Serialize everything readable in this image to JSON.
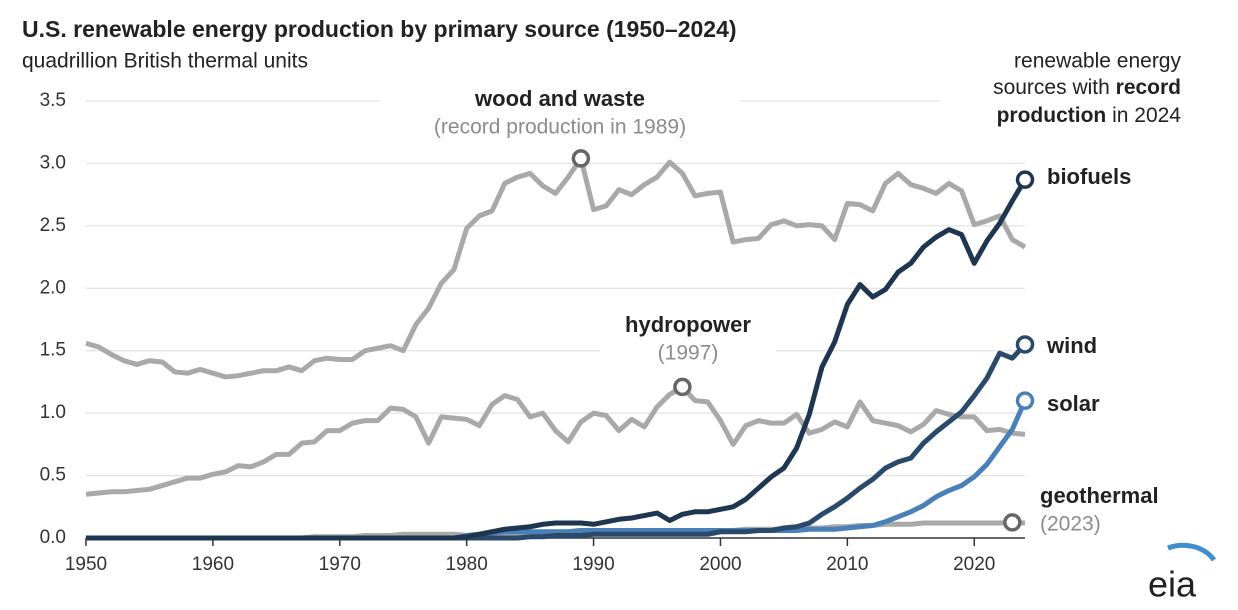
{
  "chart_data": {
    "type": "line",
    "title": "U.S. renewable energy production by primary source (1950–2024)",
    "subtitle": "quadrillion British thermal units",
    "note": {
      "line1": "renewable energy",
      "line2": "sources with",
      "line2_bold": "record",
      "line3_bold": "production",
      "line3": "in 2024"
    },
    "logo": "eia",
    "x": [
      1950,
      1951,
      1952,
      1953,
      1954,
      1955,
      1956,
      1957,
      1958,
      1959,
      1960,
      1961,
      1962,
      1963,
      1964,
      1965,
      1966,
      1967,
      1968,
      1969,
      1970,
      1971,
      1972,
      1973,
      1974,
      1975,
      1976,
      1977,
      1978,
      1979,
      1980,
      1981,
      1982,
      1983,
      1984,
      1985,
      1986,
      1987,
      1988,
      1989,
      1990,
      1991,
      1992,
      1993,
      1994,
      1995,
      1996,
      1997,
      1998,
      1999,
      2000,
      2001,
      2002,
      2003,
      2004,
      2005,
      2006,
      2007,
      2008,
      2009,
      2010,
      2011,
      2012,
      2013,
      2014,
      2015,
      2016,
      2017,
      2018,
      2019,
      2020,
      2021,
      2022,
      2023,
      2024
    ],
    "xlim": [
      1950,
      2024
    ],
    "xticks": [
      1950,
      1960,
      1970,
      1980,
      1990,
      2000,
      2010,
      2020
    ],
    "ylim": [
      0,
      3.5
    ],
    "yticks": [
      {
        "value": 0,
        "label": "0.0"
      },
      0.5,
      {
        "value": 1,
        "label": "1.0"
      },
      1.5,
      {
        "value": 2,
        "label": "2.0"
      },
      2.5,
      {
        "value": 3,
        "label": "3.0"
      },
      3.5
    ],
    "grid": true,
    "series": [
      {
        "name": "wood and waste",
        "annotation": "(record production in 1989)",
        "color": "#a9a9a9",
        "marker_color": "#666666",
        "values": [
          1.56,
          1.53,
          1.47,
          1.42,
          1.39,
          1.42,
          1.41,
          1.33,
          1.32,
          1.35,
          1.32,
          1.29,
          1.3,
          1.32,
          1.34,
          1.34,
          1.37,
          1.34,
          1.42,
          1.44,
          1.43,
          1.43,
          1.5,
          1.52,
          1.54,
          1.5,
          1.71,
          1.84,
          2.04,
          2.15,
          2.48,
          2.58,
          2.62,
          2.84,
          2.89,
          2.92,
          2.82,
          2.76,
          2.89,
          3.04,
          2.63,
          2.66,
          2.79,
          2.75,
          2.83,
          2.89,
          3.01,
          2.92,
          2.74,
          2.76,
          2.77,
          2.37,
          2.39,
          2.4,
          2.51,
          2.54,
          2.5,
          2.51,
          2.5,
          2.39,
          2.68,
          2.67,
          2.62,
          2.84,
          2.92,
          2.83,
          2.8,
          2.76,
          2.84,
          2.78,
          2.51,
          2.54,
          2.58,
          2.39,
          2.33
        ]
      },
      {
        "name": "hydropower",
        "annotation": "(1997)",
        "color": "#a9a9a9",
        "marker_color": "#666666",
        "values": [
          0.35,
          0.36,
          0.37,
          0.37,
          0.38,
          0.39,
          0.42,
          0.45,
          0.48,
          0.48,
          0.51,
          0.53,
          0.58,
          0.57,
          0.61,
          0.67,
          0.67,
          0.76,
          0.77,
          0.86,
          0.86,
          0.92,
          0.94,
          0.94,
          1.04,
          1.03,
          0.97,
          0.76,
          0.97,
          0.96,
          0.95,
          0.9,
          1.07,
          1.14,
          1.11,
          0.97,
          1.0,
          0.86,
          0.77,
          0.93,
          1.0,
          0.98,
          0.86,
          0.95,
          0.89,
          1.05,
          1.15,
          1.21,
          1.1,
          1.09,
          0.94,
          0.75,
          0.9,
          0.94,
          0.92,
          0.92,
          0.99,
          0.84,
          0.87,
          0.93,
          0.89,
          1.09,
          0.94,
          0.92,
          0.9,
          0.85,
          0.91,
          1.02,
          0.99,
          0.97,
          0.97,
          0.86,
          0.87,
          0.84,
          0.83
        ]
      },
      {
        "name": "geothermal",
        "annotation": "(2023)",
        "color": "#a9a9a9",
        "marker_color": "#666666",
        "values": [
          0,
          0,
          0,
          0,
          0,
          0,
          0,
          0,
          0,
          0,
          0,
          0,
          0,
          0,
          0,
          0,
          0,
          0,
          0.01,
          0.01,
          0.01,
          0.01,
          0.02,
          0.02,
          0.02,
          0.03,
          0.03,
          0.03,
          0.03,
          0.03,
          0.02,
          0.02,
          0.03,
          0.03,
          0.04,
          0.04,
          0.05,
          0.05,
          0.05,
          0.06,
          0.06,
          0.06,
          0.06,
          0.06,
          0.06,
          0.06,
          0.06,
          0.06,
          0.06,
          0.06,
          0.06,
          0.06,
          0.07,
          0.07,
          0.07,
          0.07,
          0.07,
          0.08,
          0.08,
          0.09,
          0.09,
          0.1,
          0.1,
          0.11,
          0.11,
          0.11,
          0.12,
          0.12,
          0.12,
          0.12,
          0.12,
          0.12,
          0.12,
          0.125,
          0.12
        ]
      },
      {
        "name": "solar",
        "color": "#4a80b8",
        "marker_color": "#4a80b8",
        "values": [
          0,
          0,
          0,
          0,
          0,
          0,
          0,
          0,
          0,
          0,
          0,
          0,
          0,
          0,
          0,
          0,
          0,
          0,
          0,
          0,
          0,
          0,
          0,
          0,
          0,
          0,
          0,
          0,
          0,
          0,
          0.02,
          0.03,
          0.04,
          0.05,
          0.05,
          0.05,
          0.05,
          0.05,
          0.05,
          0.06,
          0.06,
          0.06,
          0.06,
          0.06,
          0.06,
          0.06,
          0.06,
          0.06,
          0.06,
          0.06,
          0.06,
          0.06,
          0.06,
          0.06,
          0.06,
          0.06,
          0.06,
          0.07,
          0.07,
          0.07,
          0.08,
          0.09,
          0.1,
          0.13,
          0.17,
          0.21,
          0.26,
          0.33,
          0.38,
          0.42,
          0.49,
          0.59,
          0.73,
          0.87,
          1.1
        ]
      },
      {
        "name": "wind",
        "color": "#2a4a6c",
        "marker_color": "#2a4a6c",
        "values": [
          0,
          0,
          0,
          0,
          0,
          0,
          0,
          0,
          0,
          0,
          0,
          0,
          0,
          0,
          0,
          0,
          0,
          0,
          0,
          0,
          0,
          0,
          0,
          0,
          0,
          0,
          0,
          0,
          0,
          0,
          0,
          0,
          0,
          0,
          0,
          0.01,
          0.01,
          0.02,
          0.02,
          0.02,
          0.03,
          0.03,
          0.03,
          0.03,
          0.03,
          0.03,
          0.03,
          0.03,
          0.03,
          0.03,
          0.05,
          0.05,
          0.05,
          0.06,
          0.06,
          0.08,
          0.09,
          0.12,
          0.19,
          0.25,
          0.32,
          0.4,
          0.47,
          0.56,
          0.61,
          0.64,
          0.76,
          0.85,
          0.93,
          1.01,
          1.14,
          1.28,
          1.48,
          1.44,
          1.55
        ]
      },
      {
        "name": "biofuels",
        "color": "#1e3650",
        "marker_color": "#1e3650",
        "values": [
          0,
          0,
          0,
          0,
          0,
          0,
          0,
          0,
          0,
          0,
          0,
          0,
          0,
          0,
          0,
          0,
          0,
          0,
          0,
          0,
          0,
          0,
          0,
          0,
          0,
          0,
          0,
          0,
          0,
          0,
          0.01,
          0.03,
          0.05,
          0.07,
          0.08,
          0.09,
          0.11,
          0.12,
          0.12,
          0.12,
          0.11,
          0.13,
          0.15,
          0.16,
          0.18,
          0.2,
          0.14,
          0.19,
          0.21,
          0.21,
          0.23,
          0.25,
          0.31,
          0.4,
          0.49,
          0.56,
          0.72,
          0.99,
          1.37,
          1.57,
          1.87,
          2.03,
          1.93,
          1.99,
          2.13,
          2.2,
          2.33,
          2.41,
          2.47,
          2.43,
          2.2,
          2.38,
          2.52,
          2.7,
          2.87
        ]
      }
    ]
  }
}
